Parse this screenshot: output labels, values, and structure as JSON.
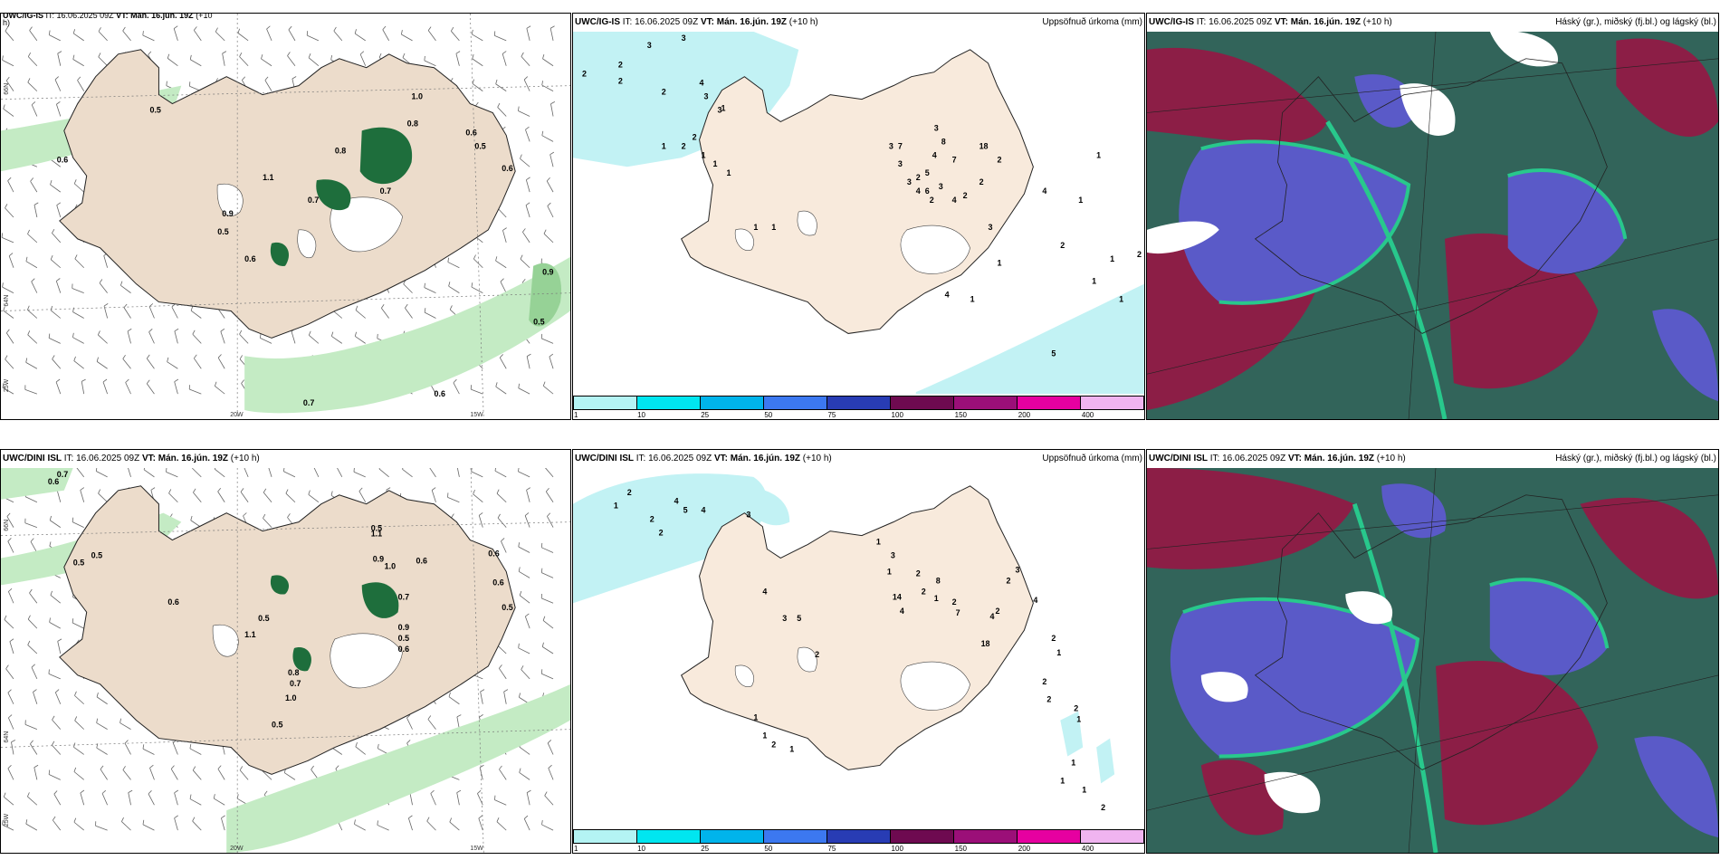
{
  "rows": [
    {
      "model": "UWC/IG-IS",
      "it": "16.06.2025 09Z",
      "vt": "Mán. 16.jún. 19Z",
      "lead": "(+10 h)",
      "wind_panel_title_partial": "UWC/IG-IS  IT: 16.06.2025 09Z VT: Mán. 16.jún. 19Z (+10",
      "wind_panel_title_overflow": "h)"
    },
    {
      "model": "UWC/DINI ISL",
      "it": "16.06.2025 09Z",
      "vt": "Mán. 16.jún. 19Z",
      "lead": "(+10 h)"
    }
  ],
  "labels": {
    "it_prefix": "IT:",
    "vt_prefix": "VT:",
    "precip_title": "Uppsöfnuð úrkoma (mm)",
    "cloud_title": "Háský (gr.), miðský (fj.bl.) og lágský (bl.)"
  },
  "grid_labels": {
    "lat": [
      "66N",
      "64N"
    ],
    "lon": [
      "25W",
      "20W",
      "15W"
    ]
  },
  "colorbar": {
    "ticks": [
      "1",
      "10",
      "25",
      "50",
      "75",
      "100",
      "150",
      "200",
      "400"
    ],
    "colors": [
      "#b4f4f4",
      "#00e6f0",
      "#00b4eb",
      "#3c78f0",
      "#283cb4",
      "#6e0a50",
      "#9b0f78",
      "#e600a0",
      "#f0b4f0"
    ]
  },
  "colors": {
    "land": "#ecdccb",
    "precip_light": "#c2f2f4",
    "wind_green_light": "#c4ebc4",
    "wind_green": "#96d296",
    "wind_green_dark": "#1e6e3c",
    "cloud_high": "#8c1e46",
    "cloud_mid": "#5a5ac8",
    "cloud_low": "#32645a",
    "cloud_edge": "#28c88c"
  },
  "wind_labels_top": [
    "0.5",
    "0.6",
    "0.8",
    "0.7",
    "0.9",
    "0.5",
    "0.6",
    "1.0",
    "0.8",
    "0.6",
    "0.5",
    "0.6",
    "0.9",
    "0.5",
    "0.6",
    "0.7",
    "1.1",
    "0.7"
  ],
  "wind_labels_bottom": [
    "0.6",
    "0.7",
    "0.5",
    "0.5",
    "0.6",
    "0.5",
    "1.1",
    "0.9",
    "0.5",
    "1.0",
    "0.6",
    "0.7",
    "0.6",
    "0.6",
    "0.5",
    "1.1",
    "0.8",
    "0.7",
    "1.0",
    "0.5",
    "0.9",
    "0.5",
    "0.6"
  ],
  "precip_labels_top": [
    "2",
    "2",
    "3",
    "2",
    "2",
    "2",
    "3",
    "4",
    "3",
    "3",
    "1",
    "1",
    "2",
    "2",
    "1",
    "1",
    "1",
    "1",
    "1",
    "7",
    "3",
    "4",
    "2",
    "8",
    "18",
    "7",
    "2",
    "5",
    "6",
    "3",
    "4",
    "2",
    "2",
    "3",
    "1",
    "4",
    "1",
    "5",
    "4",
    "2",
    "1",
    "1",
    "1",
    "1",
    "1",
    "2",
    "3",
    "3",
    "3",
    "4",
    "2"
  ],
  "precip_labels_bottom": [
    "2",
    "1",
    "2",
    "2",
    "4",
    "5",
    "4",
    "3",
    "3",
    "4",
    "5",
    "2",
    "1",
    "1",
    "3",
    "14",
    "2",
    "2",
    "4",
    "1",
    "8",
    "2",
    "7",
    "18",
    "4",
    "2",
    "2",
    "3",
    "4",
    "2",
    "1",
    "2",
    "2",
    "2",
    "1",
    "1",
    "1",
    "1",
    "2",
    "1",
    "1",
    "2",
    "1"
  ]
}
